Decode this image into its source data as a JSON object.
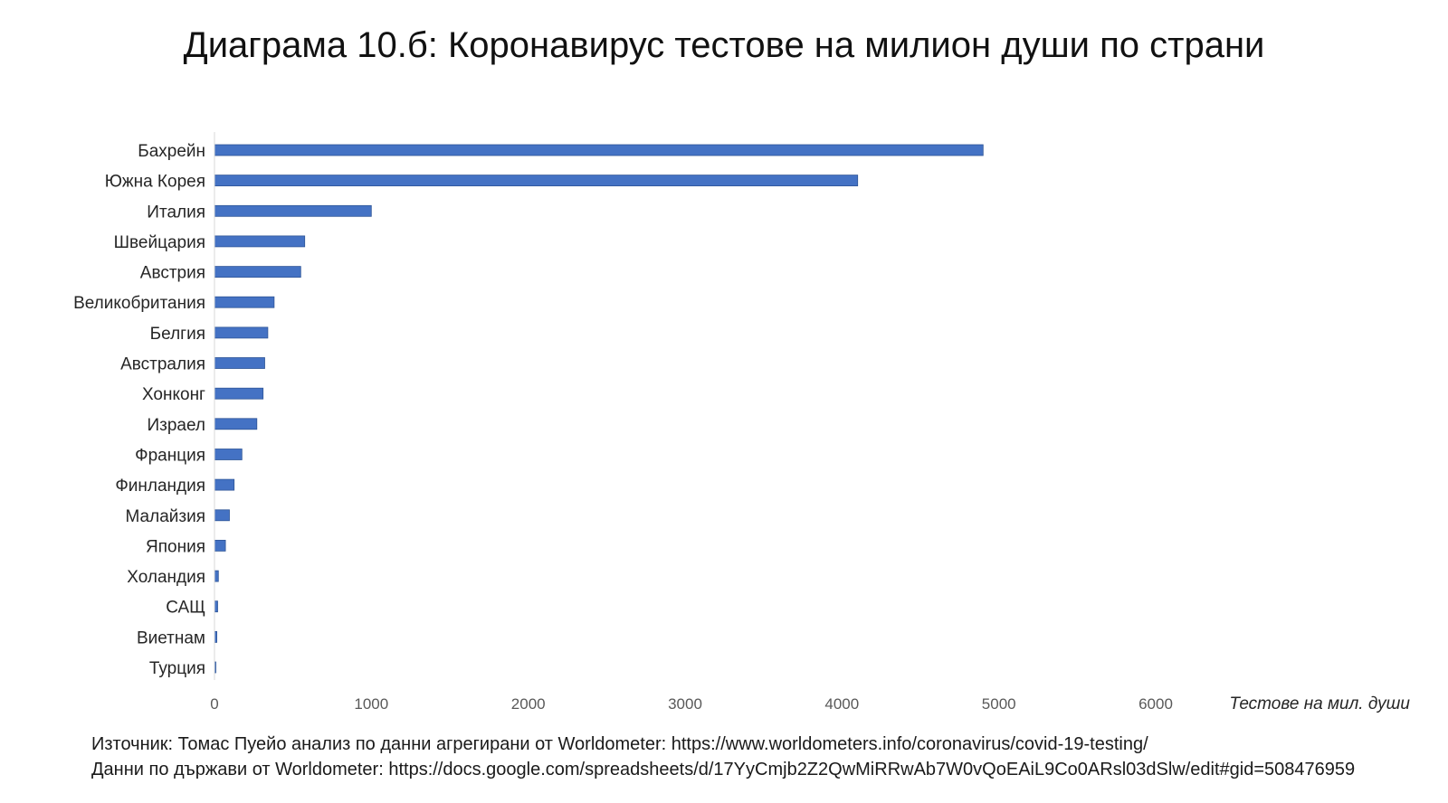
{
  "title": "Диаграма 10.б: Коронавирус тестове на милион души по страни",
  "chart_data": {
    "type": "bar",
    "orientation": "horizontal",
    "title": "Диаграма 10.б: Коронавирус тестове на милион души по страни",
    "xlabel": "Тестове на мил. души",
    "ylabel": "",
    "xlim": [
      0,
      6000
    ],
    "xticks": [
      "0",
      "1000",
      "2000",
      "3000",
      "4000",
      "5000",
      "6000"
    ],
    "grid": false,
    "legend": "none",
    "bar_color": "#4472C4",
    "categories": [
      "Бахрейн",
      "Южна Корея",
      "Италия",
      "Швейцария",
      "Австрия",
      "Великобритания",
      "Белгия",
      "Австралия",
      "Хонконг",
      "Израел",
      "Франция",
      "Финландия",
      "Малайзия",
      "Япония",
      "Холандия",
      "САЩ",
      "Виетнам",
      "Турция"
    ],
    "values": [
      4900,
      4100,
      1000,
      575,
      550,
      380,
      340,
      320,
      310,
      270,
      175,
      125,
      95,
      70,
      25,
      20,
      15,
      5
    ]
  },
  "footer": {
    "source_line": "Източник: Томас Пуейо анализ по данни агрегирани от Worldometer: https://www.worldometers.info/coronavirus/covid-19-testing/",
    "data_line": "Данни по държави от Worldometer: https://docs.google.com/spreadsheets/d/17YyCmjb2Z2QwMiRRwAb7W0vQoEAiL9Co0ARsl03dSlw/edit#gid=508476959"
  }
}
